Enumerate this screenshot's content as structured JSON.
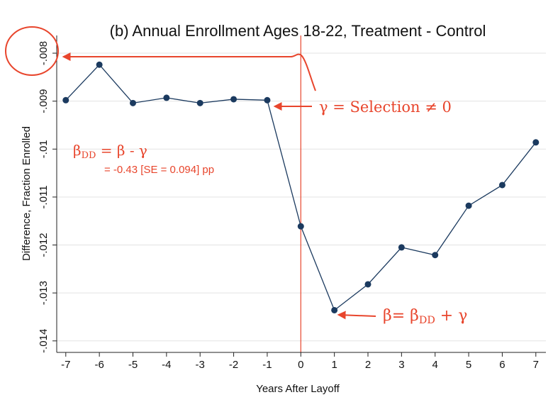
{
  "chart_data": {
    "type": "line",
    "title": "(b) Annual Enrollment Ages 18-22, Treatment - Control",
    "x_label": "Years After Layoff",
    "y_label": "Difference, Fraction Enrolled",
    "x": [
      -7,
      -6,
      -5,
      -4,
      -3,
      -2,
      -1,
      0,
      1,
      2,
      3,
      4,
      5,
      6,
      7
    ],
    "series": [
      {
        "color": "#1b3a5f",
        "values": [
          -0.00898,
          -0.00824,
          -0.00904,
          -0.00893,
          -0.00904,
          -0.00896,
          -0.00898,
          -0.01161,
          -0.01336,
          -0.01282,
          -0.01205,
          -0.01221,
          -0.01118,
          -0.01075,
          -0.00986
        ]
      }
    ],
    "xlim": [
      -7.27,
      7.3
    ],
    "ylim": [
      -0.01424,
      -0.00763
    ],
    "xticks": [
      -7,
      -6,
      -5,
      -4,
      -3,
      -2,
      -1,
      0,
      1,
      2,
      3,
      4,
      5,
      6,
      7
    ],
    "yticks": [
      {
        "value": -0.014,
        "label": "-.014"
      },
      {
        "value": -0.013,
        "label": "-.013"
      },
      {
        "value": -0.012,
        "label": "-.012"
      },
      {
        "value": -0.011,
        "label": "-.011"
      },
      {
        "value": -0.01,
        "label": "-.01"
      },
      {
        "value": -0.009,
        "label": "-.009"
      },
      {
        "value": -0.008,
        "label": "-.008"
      }
    ],
    "grid": true,
    "vline": 0,
    "annotation_color": "#e8452c",
    "annotations": [
      {
        "parts": [
          "γ = Selection ≠ 0"
        ]
      },
      {
        "parts": [
          "β",
          "DD",
          " = β - γ"
        ]
      },
      {
        "parts": [
          "= -0.43 [SE = 0.094] pp"
        ]
      },
      {
        "parts": [
          "β= β",
          "DD",
          " + γ"
        ]
      }
    ]
  }
}
